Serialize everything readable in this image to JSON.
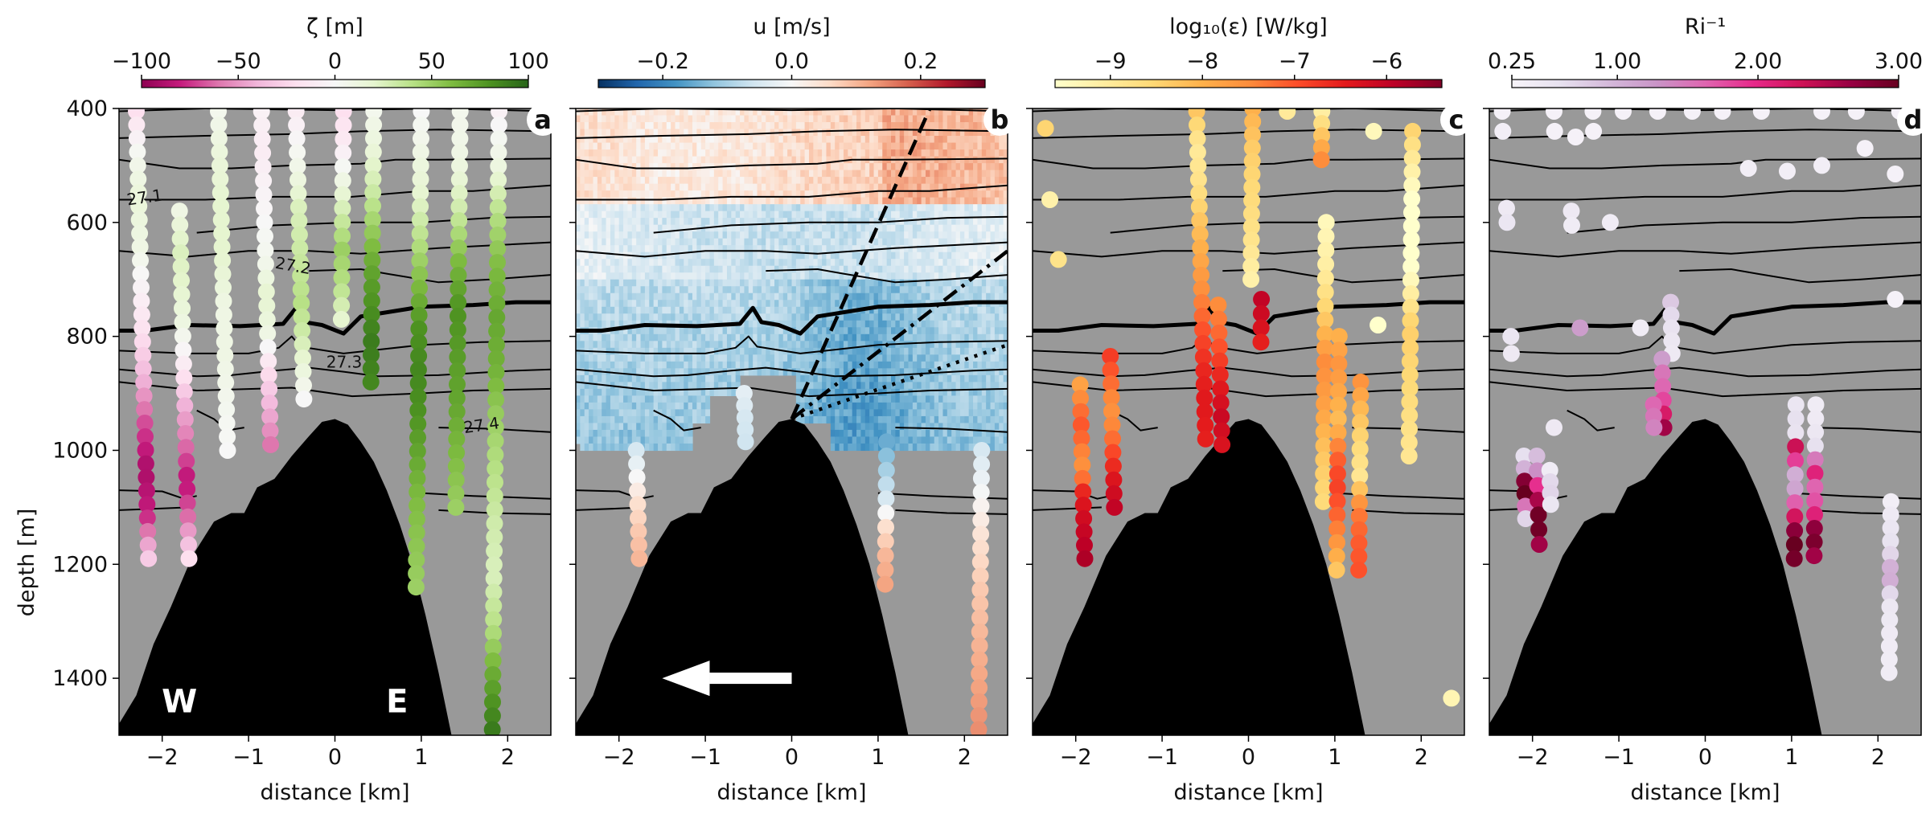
{
  "chart_data": [
    {
      "type": "scatter",
      "panel_label": "a",
      "xlabel": "distance [km]",
      "ylabel": "depth [m]",
      "xlim": [
        -2.5,
        2.5
      ],
      "ylim": [
        1500,
        400
      ],
      "xticks": [
        "−2",
        "−1",
        "0",
        "1",
        "2"
      ],
      "yticks": [
        "400",
        "600",
        "800",
        "1000",
        "1200",
        "1400"
      ],
      "colorbar": {
        "title": "ζ [m]",
        "range": [
          -100,
          100
        ],
        "ticks": [
          "−100",
          "−50",
          "0",
          "50",
          "100"
        ],
        "colormap": [
          "#8e0152",
          "#c51b7d",
          "#de77ae",
          "#f1b6da",
          "#fde0ef",
          "#f7f7f7",
          "#e6f5d0",
          "#b8e186",
          "#7fbc41",
          "#4d9221",
          "#276419"
        ]
      },
      "contour_labels": [
        "27.1",
        "27.2",
        "27.3",
        "27.4"
      ],
      "annotations": [
        "W",
        "E"
      ],
      "profiles": [
        {
          "x": -2.3,
          "d_start": 405,
          "d_end": 1190,
          "values": [
            -20,
            5,
            15,
            10,
            -5,
            -20,
            -40,
            -70,
            -90,
            -80,
            -30
          ]
        },
        {
          "x": -1.8,
          "d_start": 580,
          "d_end": 1190,
          "values": [
            10,
            25,
            20,
            10,
            -10,
            -40,
            -60,
            -85,
            -60,
            -20
          ]
        },
        {
          "x": -1.35,
          "d_start": 405,
          "d_end": 1000,
          "values": [
            5,
            15,
            20,
            20,
            10,
            10,
            5,
            0
          ]
        },
        {
          "x": -0.85,
          "d_start": 405,
          "d_end": 990,
          "values": [
            -5,
            -10,
            -5,
            0,
            5,
            20,
            10,
            -20,
            -40,
            -60
          ]
        },
        {
          "x": -0.45,
          "d_start": 405,
          "d_end": 910,
          "values": [
            -10,
            0,
            10,
            25,
            30,
            35,
            40,
            30,
            15,
            0
          ]
        },
        {
          "x": 0.1,
          "d_start": 405,
          "d_end": 770,
          "values": [
            -20,
            -10,
            10,
            30,
            50,
            40,
            20
          ]
        },
        {
          "x": 0.45,
          "d_start": 405,
          "d_end": 880,
          "values": [
            5,
            15,
            30,
            50,
            70,
            80,
            90,
            85
          ]
        },
        {
          "x": 1.0,
          "d_start": 405,
          "d_end": 1240,
          "values": [
            0,
            10,
            20,
            40,
            60,
            80,
            85,
            80,
            70,
            60,
            55,
            50
          ]
        },
        {
          "x": 1.45,
          "d_start": 405,
          "d_end": 1100,
          "values": [
            5,
            10,
            30,
            60,
            80,
            75,
            70,
            60,
            50
          ]
        },
        {
          "x": 1.9,
          "d_start": 405,
          "d_end": 1490,
          "values": [
            -5,
            10,
            40,
            60,
            70,
            65,
            50,
            40,
            30,
            25,
            40,
            70,
            90
          ]
        }
      ]
    },
    {
      "type": "heatmap",
      "panel_label": "b",
      "xlabel": "distance [km]",
      "xlim": [
        -2.5,
        2.5
      ],
      "ylim": [
        1500,
        400
      ],
      "xticks": [
        "−2",
        "−1",
        "0",
        "1",
        "2"
      ],
      "colorbar": {
        "title": "u [m/s]",
        "range": [
          -0.3,
          0.3
        ],
        "ticks": [
          "−0.2",
          "0.0",
          "0.2"
        ],
        "colormap": [
          "#053061",
          "#2166ac",
          "#4393c3",
          "#92c5de",
          "#d1e5f0",
          "#f7f7f7",
          "#fddbc7",
          "#f4a582",
          "#d6604d",
          "#b2182b",
          "#67001f"
        ]
      },
      "annotations": [
        "←"
      ],
      "profiles": [
        {
          "x": -1.8,
          "d_start": 1000,
          "d_end": 1190,
          "values": [
            -0.05,
            0.0,
            0.05,
            0.08,
            0.1
          ]
        },
        {
          "x": -0.55,
          "d_start": 900,
          "d_end": 985,
          "values": [
            -0.03,
            -0.05,
            -0.06
          ]
        },
        {
          "x": 1.1,
          "d_start": 985,
          "d_end": 1235,
          "values": [
            -0.15,
            -0.1,
            -0.05,
            0.05,
            0.1,
            0.12
          ]
        },
        {
          "x": 2.2,
          "d_start": 1000,
          "d_end": 1490,
          "values": [
            -0.05,
            0.0,
            0.05,
            0.08,
            0.1,
            0.12,
            0.14
          ]
        }
      ]
    },
    {
      "type": "scatter",
      "panel_label": "c",
      "xlabel": "distance [km]",
      "xlim": [
        -2.5,
        2.5
      ],
      "ylim": [
        1500,
        400
      ],
      "xticks": [
        "−2",
        "−1",
        "0",
        "1",
        "2"
      ],
      "colorbar": {
        "title": "log₁₀(ε) [W/kg]",
        "range": [
          -9.6,
          -5.4
        ],
        "ticks": [
          "−9",
          "−8",
          "−7",
          "−6"
        ],
        "colormap": [
          "#ffffcc",
          "#ffeda0",
          "#fed976",
          "#feb24c",
          "#fd8d3c",
          "#fc4e2a",
          "#e31a1c",
          "#bd0026",
          "#800026"
        ]
      },
      "profiles": [
        {
          "x": -2.35,
          "d_start": 435,
          "d_end": 435,
          "values": [
            -8.5
          ]
        },
        {
          "x": -2.3,
          "d_start": 560,
          "d_end": 560,
          "values": [
            -9.2
          ]
        },
        {
          "x": -2.2,
          "d_start": 665,
          "d_end": 665,
          "values": [
            -8.8
          ]
        },
        {
          "x": -1.95,
          "d_start": 885,
          "d_end": 1190,
          "values": [
            -7.8,
            -7.3,
            -7.0,
            -7.4,
            -7.6,
            -6.5,
            -6.2,
            -6.0,
            -5.8
          ]
        },
        {
          "x": -1.6,
          "d_start": 835,
          "d_end": 1100,
          "values": [
            -6.8,
            -7.2,
            -7.6,
            -7.4,
            -6.8,
            -6.3,
            -6.0
          ]
        },
        {
          "x": -0.6,
          "d_start": 405,
          "d_end": 980,
          "values": [
            -8.3,
            -9.0,
            -8.8,
            -8.3,
            -7.9,
            -7.5,
            -7.0,
            -6.6,
            -6.4,
            -6.5
          ]
        },
        {
          "x": -0.35,
          "d_start": 745,
          "d_end": 990,
          "values": [
            -7.5,
            -7.2,
            -6.8,
            -6.4,
            -6.1,
            -6.3
          ]
        },
        {
          "x": 0.15,
          "d_start": 735,
          "d_end": 810,
          "values": [
            -6.0,
            -6.2,
            -6.5
          ]
        },
        {
          "x": 0.05,
          "d_start": 400,
          "d_end": 700,
          "values": [
            -8.0,
            -8.4,
            -8.6,
            -8.8,
            -9.2
          ]
        },
        {
          "x": 0.45,
          "d_start": 405,
          "d_end": 405,
          "values": [
            -9.0
          ]
        },
        {
          "x": 0.85,
          "d_start": 405,
          "d_end": 490,
          "values": [
            -9.1,
            -7.5
          ]
        },
        {
          "x": 0.9,
          "d_start": 600,
          "d_end": 1090,
          "values": [
            -9.4,
            -9.1,
            -8.4,
            -7.5,
            -7.8,
            -8.3,
            -8.6
          ]
        },
        {
          "x": 1.05,
          "d_start": 800,
          "d_end": 1210,
          "values": [
            -8.0,
            -7.6,
            -7.9,
            -8.2,
            -7.2,
            -6.8,
            -7.1,
            -7.6,
            -8.3
          ]
        },
        {
          "x": 1.3,
          "d_start": 880,
          "d_end": 1210,
          "values": [
            -7.6,
            -8.2,
            -8.6,
            -8.9,
            -7.4,
            -7.1,
            -7.0
          ]
        },
        {
          "x": 1.5,
          "d_start": 780,
          "d_end": 780,
          "values": [
            -9.6
          ]
        },
        {
          "x": 1.45,
          "d_start": 440,
          "d_end": 440,
          "values": [
            -9.4
          ]
        },
        {
          "x": 1.9,
          "d_start": 440,
          "d_end": 1010,
          "values": [
            -8.5,
            -9.6,
            -9.8,
            -8.4,
            -8.6,
            -8.9
          ]
        },
        {
          "x": 2.35,
          "d_start": 1435,
          "d_end": 1435,
          "values": [
            -9.3
          ]
        }
      ]
    },
    {
      "type": "scatter",
      "panel_label": "d",
      "xlabel": "distance [km]",
      "xlim": [
        -2.5,
        2.5
      ],
      "ylim": [
        1500,
        400
      ],
      "xticks": [
        "−2",
        "−1",
        "0",
        "1",
        "2"
      ],
      "colorbar": {
        "title": "Ri⁻¹",
        "range": [
          0.25,
          3.0
        ],
        "ticks": [
          "0.25",
          "1.00",
          "2.00",
          "3.00"
        ],
        "colormap": [
          "#f7f4f9",
          "#e7e1ef",
          "#d4b9da",
          "#c994c7",
          "#df65b0",
          "#e7298a",
          "#ce1256",
          "#980043",
          "#67001f"
        ]
      },
      "profiles": [
        {
          "x": -2.35,
          "d_start": 405,
          "d_end": 440,
          "values": [
            0.3,
            0.35
          ]
        },
        {
          "x": -1.75,
          "d_start": 405,
          "d_end": 440,
          "values": [
            0.3,
            0.3
          ]
        },
        {
          "x": -1.3,
          "d_start": 405,
          "d_end": 440,
          "values": [
            0.3,
            0.3
          ]
        },
        {
          "x": -0.95,
          "d_start": 405,
          "d_end": 405,
          "values": [
            0.3
          ]
        },
        {
          "x": -0.55,
          "d_start": 405,
          "d_end": 405,
          "values": [
            0.3
          ]
        },
        {
          "x": -0.15,
          "d_start": 405,
          "d_end": 405,
          "values": [
            0.3
          ]
        },
        {
          "x": 0.2,
          "d_start": 405,
          "d_end": 405,
          "values": [
            0.3
          ]
        },
        {
          "x": 0.65,
          "d_start": 405,
          "d_end": 405,
          "values": [
            0.3
          ]
        },
        {
          "x": 1.35,
          "d_start": 405,
          "d_end": 405,
          "values": [
            0.3
          ]
        },
        {
          "x": 1.75,
          "d_start": 405,
          "d_end": 405,
          "values": [
            0.3
          ]
        },
        {
          "x": 2.25,
          "d_start": 405,
          "d_end": 405,
          "values": [
            0.3
          ]
        },
        {
          "x": -2.3,
          "d_start": 575,
          "d_end": 600,
          "values": [
            0.45,
            0.5
          ]
        },
        {
          "x": -1.55,
          "d_start": 580,
          "d_end": 605,
          "values": [
            0.45,
            0.4
          ]
        },
        {
          "x": -1.1,
          "d_start": 600,
          "d_end": 600,
          "values": [
            0.4
          ]
        },
        {
          "x": -1.5,
          "d_start": 450,
          "d_end": 450,
          "values": [
            0.3
          ]
        },
        {
          "x": 0.5,
          "d_start": 505,
          "d_end": 505,
          "values": [
            0.35
          ]
        },
        {
          "x": 0.95,
          "d_start": 510,
          "d_end": 510,
          "values": [
            0.35
          ]
        },
        {
          "x": 1.35,
          "d_start": 500,
          "d_end": 500,
          "values": [
            0.35
          ]
        },
        {
          "x": 1.85,
          "d_start": 470,
          "d_end": 470,
          "values": [
            0.3
          ]
        },
        {
          "x": 2.2,
          "d_start": 515,
          "d_end": 515,
          "values": [
            0.3
          ]
        },
        {
          "x": -2.25,
          "d_start": 800,
          "d_end": 830,
          "values": [
            0.5,
            0.45
          ]
        },
        {
          "x": -1.45,
          "d_start": 785,
          "d_end": 785,
          "values": [
            1.2
          ]
        },
        {
          "x": -0.75,
          "d_start": 785,
          "d_end": 785,
          "values": [
            0.4
          ]
        },
        {
          "x": -0.4,
          "d_start": 740,
          "d_end": 830,
          "values": [
            0.8,
            0.6,
            0.5,
            0.45
          ]
        },
        {
          "x": -0.5,
          "d_start": 840,
          "d_end": 960,
          "values": [
            1.2,
            1.5,
            1.6,
            1.8,
            2.2,
            2.6
          ]
        },
        {
          "x": -0.6,
          "d_start": 920,
          "d_end": 960,
          "values": [
            1.6,
            1.4
          ]
        },
        {
          "x": 2.2,
          "d_start": 735,
          "d_end": 735,
          "values": [
            0.3
          ]
        },
        {
          "x": -1.75,
          "d_start": 960,
          "d_end": 960,
          "values": [
            0.45
          ]
        },
        {
          "x": -2.1,
          "d_start": 1010,
          "d_end": 1120,
          "values": [
            0.6,
            1.0,
            2.8,
            3.0,
            1.5,
            0.7
          ]
        },
        {
          "x": -1.95,
          "d_start": 1010,
          "d_end": 1165,
          "values": [
            0.9,
            1.4,
            2.2,
            2.9,
            3.0,
            2.6
          ]
        },
        {
          "x": -1.8,
          "d_start": 1035,
          "d_end": 1095,
          "values": [
            0.4,
            0.8,
            0.5
          ]
        },
        {
          "x": 1.05,
          "d_start": 920,
          "d_end": 1190,
          "values": [
            0.5,
            0.6,
            0.55,
            3.0,
            1.2,
            0.9,
            1.4,
            2.1,
            2.7,
            3.0,
            2.9
          ]
        },
        {
          "x": 1.28,
          "d_start": 920,
          "d_end": 1185,
          "values": [
            0.4,
            0.45,
            0.6,
            2.2,
            1.5,
            2.0,
            3.0,
            2.6
          ]
        },
        {
          "x": 2.15,
          "d_start": 1090,
          "d_end": 1390,
          "values": [
            0.35,
            0.5,
            0.6,
            1.2,
            0.5,
            0.45,
            0.4,
            0.4
          ]
        }
      ]
    }
  ]
}
